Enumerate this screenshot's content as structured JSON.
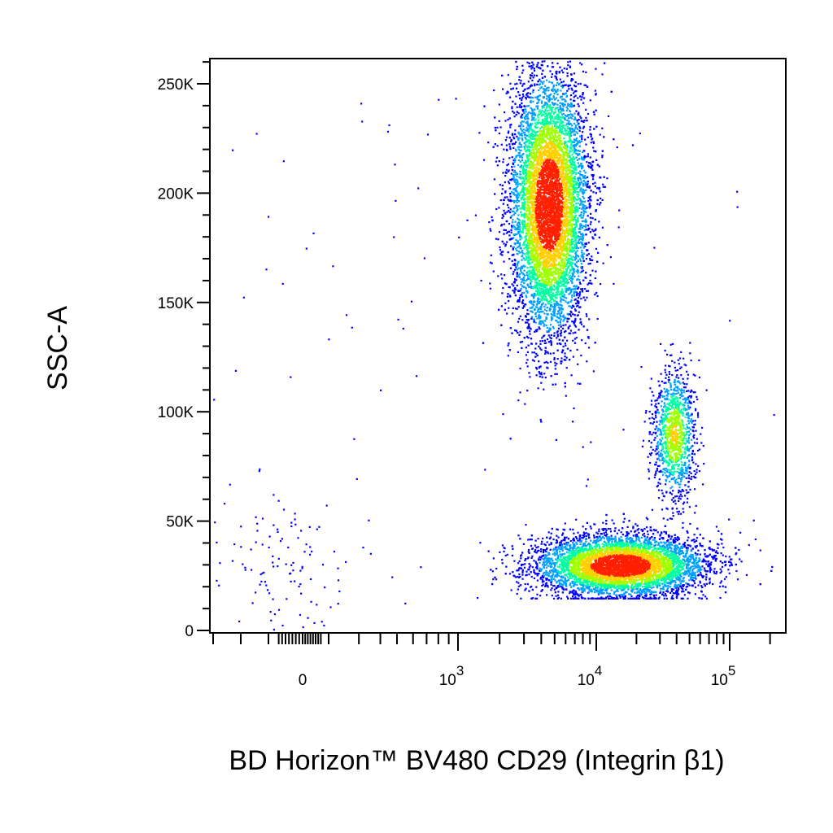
{
  "chart_data": {
    "type": "scatter",
    "style": "density-dot-plot",
    "xlabel": "BD Horizon™ BV480 CD29 (Integrin β1)",
    "ylabel": "SSC-A",
    "x_scale": "biexponential",
    "x_ticks": [
      {
        "value": 0,
        "label": "0",
        "sup": ""
      },
      {
        "value": 1000,
        "label": "10",
        "sup": "3"
      },
      {
        "value": 10000,
        "label": "10",
        "sup": "4"
      },
      {
        "value": 100000,
        "label": "10",
        "sup": "5"
      }
    ],
    "y_ticks": [
      {
        "value": 0,
        "label": "0"
      },
      {
        "value": 50000,
        "label": "50K"
      },
      {
        "value": 100000,
        "label": "100K"
      },
      {
        "value": 150000,
        "label": "150K"
      },
      {
        "value": 200000,
        "label": "200K"
      },
      {
        "value": 250000,
        "label": "250K"
      }
    ],
    "ylim": [
      0,
      262144
    ],
    "xlim": [
      -400,
      262144
    ],
    "grid": false,
    "populations": [
      {
        "x_median": 4500,
        "y_center": 195000,
        "y_spread": 30000,
        "count": 9000
      },
      {
        "x_median": 15000,
        "y_center": 30000,
        "y_spread": 7000,
        "count": 7000
      },
      {
        "x_median": 38000,
        "y_center": 90000,
        "y_spread": 15000,
        "count": 1200
      },
      {
        "x_median": -150,
        "y_center": 30000,
        "y_spread": 20000,
        "count": 120
      }
    ],
    "colormap": [
      "#0000ff",
      "#00a0ff",
      "#00ffa0",
      "#a0ff00",
      "#ffd000",
      "#ff2000"
    ]
  }
}
